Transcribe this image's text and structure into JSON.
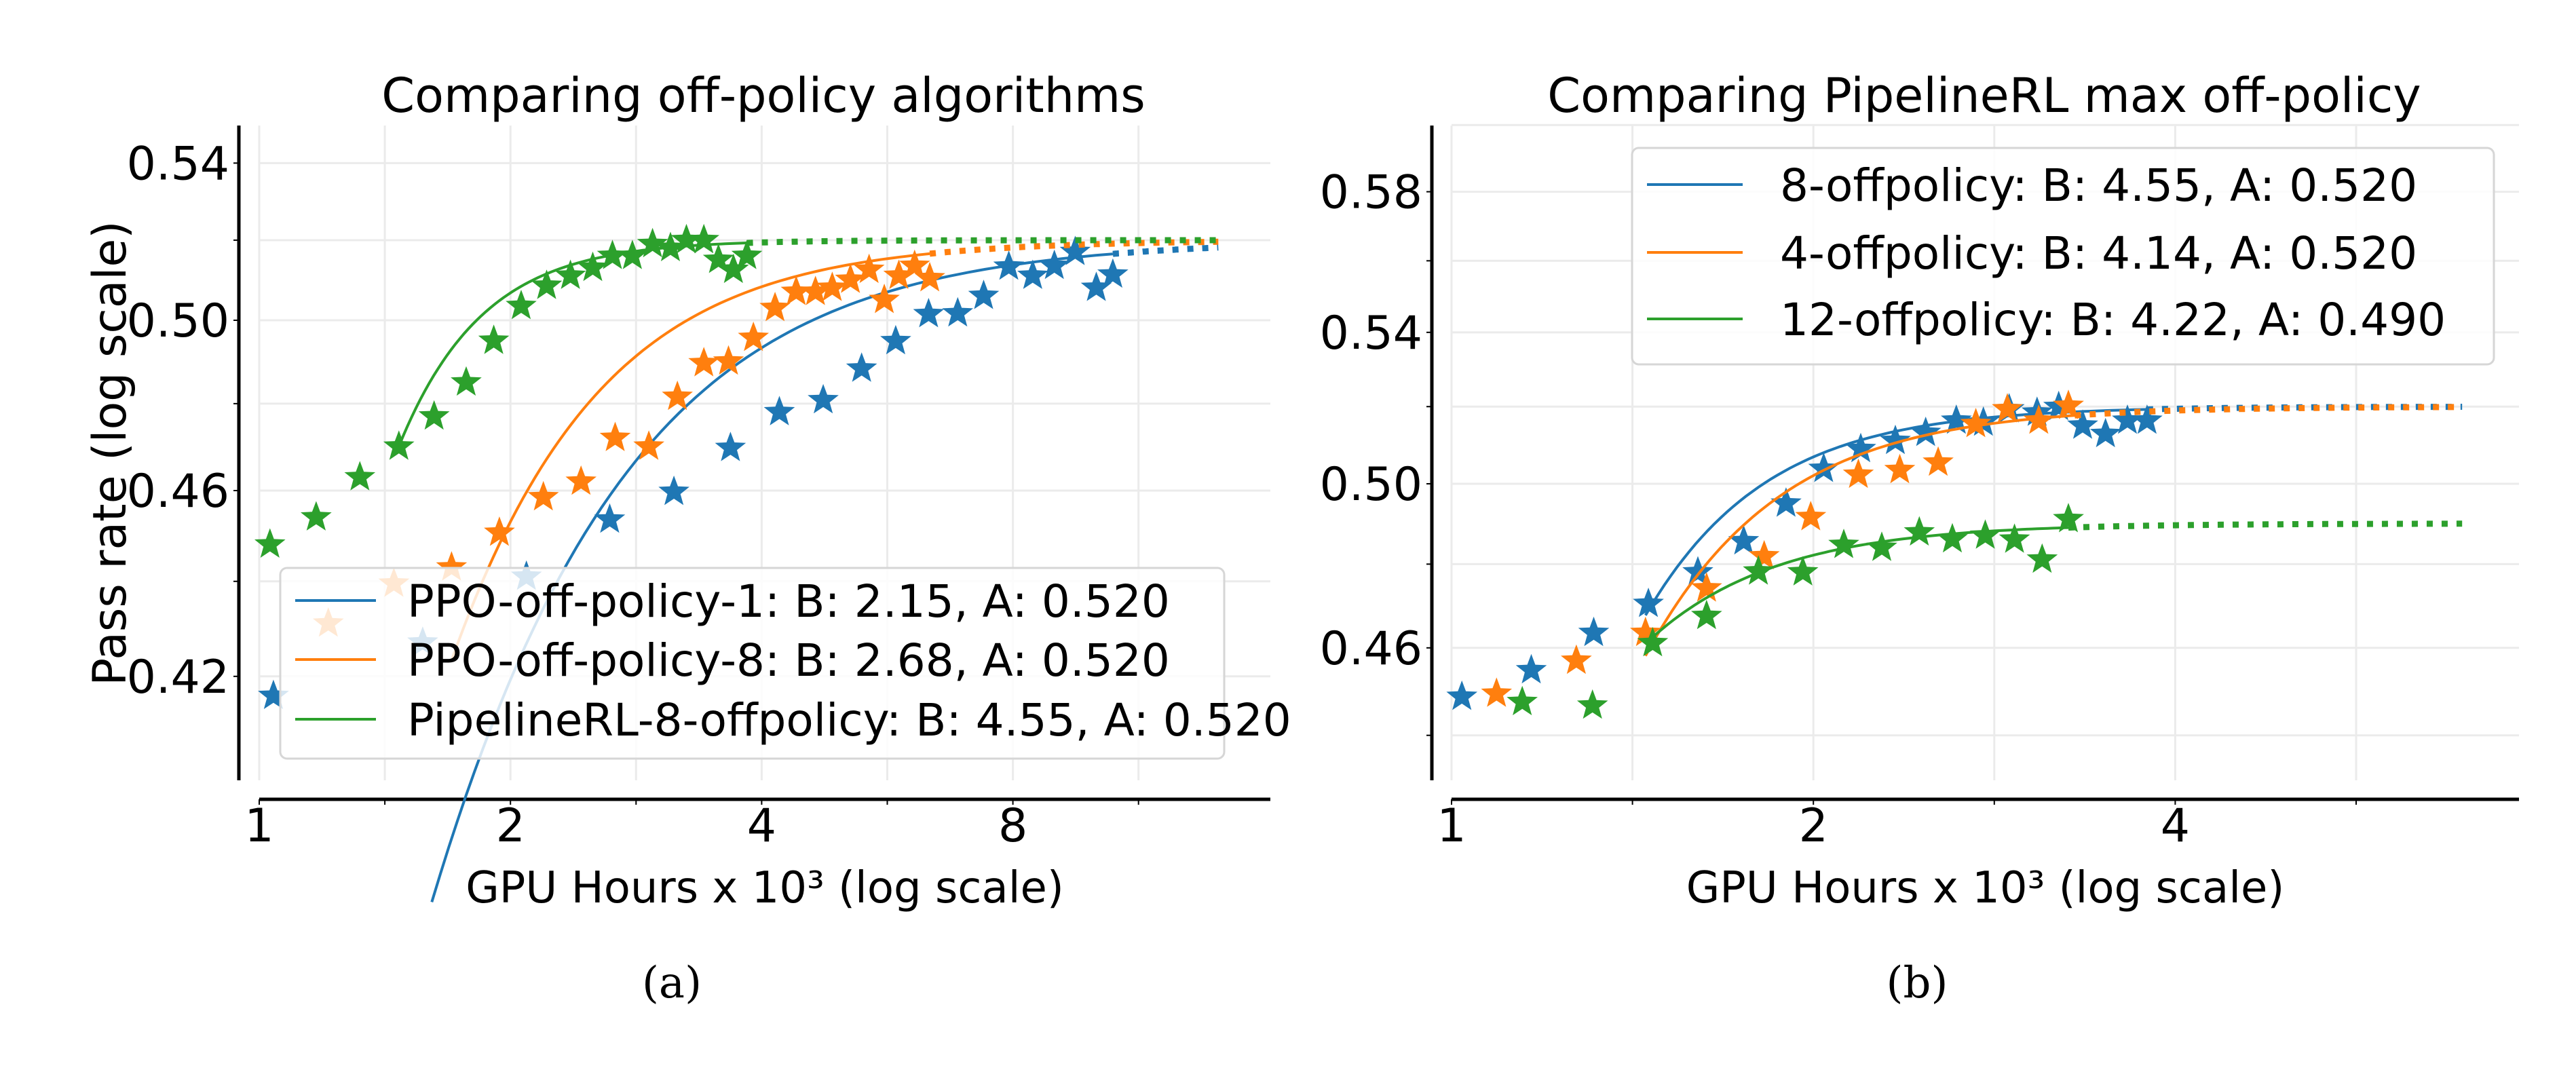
{
  "colors": {
    "blue": "#1f77b4",
    "orange": "#ff7f0e",
    "green": "#2ca02c"
  },
  "chart_data": [
    {
      "type": "scatter",
      "caption": "(a)",
      "title": "Comparing off-policy algorithms",
      "xlabel": "GPU Hours x 10³ (log scale)",
      "ylabel": "Pass rate (log scale)",
      "xscale": "log2",
      "yscale": "log",
      "xlim": [
        1,
        16
      ],
      "ylim": [
        0.4,
        0.55
      ],
      "xticks": [
        1,
        2,
        4,
        8
      ],
      "xtick_labels": [
        "1",
        "2",
        "4",
        "8"
      ],
      "yticks": [
        0.42,
        0.46,
        0.5,
        0.54
      ],
      "ytick_labels": [
        "0.42",
        "0.46",
        "0.50",
        "0.54"
      ],
      "grid": true,
      "legend_position": "lower-right",
      "marker": "star",
      "series": [
        {
          "name": "PPO-off-policy-1: B: 2.15, A: 0.520",
          "color": "#1f77b4",
          "B": 2.15,
          "A": 0.52,
          "fit_range": [
            1.61,
            10.54
          ],
          "extrapolate_to": 14.1,
          "x": [
            1.04,
            1.57,
            2.09,
            2.63,
            3.14,
            3.67,
            4.2,
            4.74,
            5.27,
            5.79,
            6.34,
            6.87,
            7.38,
            7.91,
            8.45,
            8.97,
            9.5,
            10.07,
            10.54
          ],
          "y": [
            0.416,
            0.427,
            0.441,
            0.4535,
            0.4597,
            0.4697,
            0.478,
            0.4808,
            0.4883,
            0.4949,
            0.5015,
            0.5017,
            0.506,
            0.5133,
            0.511,
            0.5135,
            0.517,
            0.508,
            0.5113
          ]
        },
        {
          "name": "PPO-off-policy-8: B: 2.68, A: 0.520",
          "color": "#ff7f0e",
          "B": 2.68,
          "A": 0.52,
          "fit_range": [
            1.7,
            6.36
          ],
          "extrapolate_to": 14.1,
          "x": [
            1.21,
            1.45,
            1.7,
            1.94,
            2.19,
            2.43,
            2.67,
            2.93,
            3.17,
            3.41,
            3.65,
            3.91,
            4.15,
            4.4,
            4.64,
            4.86,
            5.11,
            5.38,
            5.61,
            5.84,
            6.1,
            6.36
          ],
          "y": [
            0.431,
            0.4395,
            0.443,
            0.4506,
            0.4585,
            0.462,
            0.472,
            0.47,
            0.4816,
            0.4896,
            0.49,
            0.4957,
            0.503,
            0.507,
            0.507,
            0.508,
            0.51,
            0.5125,
            0.505,
            0.511,
            0.5135,
            0.5104
          ]
        },
        {
          "name": "PipelineRL-8-offpolicy: B: 4.55, A: 0.520",
          "color": "#2ca02c",
          "B": 4.55,
          "A": 0.52,
          "fit_range": [
            1.47,
            3.84
          ],
          "extrapolate_to": 14.1,
          "x": [
            1.03,
            1.17,
            1.32,
            1.47,
            1.62,
            1.77,
            1.91,
            2.06,
            2.21,
            2.36,
            2.51,
            2.65,
            2.8,
            2.96,
            3.11,
            3.25,
            3.41,
            3.55,
            3.7,
            3.84
          ],
          "y": [
            0.448,
            0.454,
            0.463,
            0.47,
            0.477,
            0.485,
            0.495,
            0.5035,
            0.5085,
            0.511,
            0.513,
            0.516,
            0.516,
            0.519,
            0.518,
            0.52,
            0.52,
            0.515,
            0.5125,
            0.516
          ]
        }
      ]
    },
    {
      "type": "scatter",
      "caption": "(b)",
      "title": "Comparing PipelineRL max off-policy",
      "xlabel": "GPU Hours x 10³ (log scale)",
      "ylabel": "",
      "xscale": "log2",
      "yscale": "log",
      "xlim": [
        1,
        7.7
      ],
      "ylim": [
        0.43,
        0.6
      ],
      "xticks": [
        1,
        2,
        4
      ],
      "xtick_labels": [
        "1",
        "2",
        "4"
      ],
      "yticks": [
        0.46,
        0.5,
        0.54,
        0.58
      ],
      "ytick_labels": [
        "0.46",
        "0.50",
        "0.54",
        "0.58"
      ],
      "grid": true,
      "legend_position": "upper-right",
      "marker": "star",
      "series": [
        {
          "name": "8-offpolicy: B: 4.55, A: 0.520",
          "color": "#1f77b4",
          "B": 4.55,
          "A": 0.52,
          "fit_range": [
            1.45,
            3.79
          ],
          "extrapolate_to": 6.93,
          "x": [
            1.02,
            1.165,
            1.313,
            1.458,
            1.603,
            1.75,
            1.898,
            2.04,
            2.19,
            2.34,
            2.48,
            2.63,
            2.77,
            2.91,
            3.07,
            3.2,
            3.35,
            3.5,
            3.65,
            3.79
          ],
          "y": [
            0.4487,
            0.4548,
            0.4635,
            0.4704,
            0.478,
            0.4856,
            0.495,
            0.5038,
            0.5089,
            0.511,
            0.5131,
            0.5163,
            0.5158,
            0.5193,
            0.5184,
            0.5199,
            0.515,
            0.5128,
            0.5163,
            0.5163
          ]
        },
        {
          "name": "4-offpolicy: B: 4.14, A: 0.520",
          "color": "#ff7f0e",
          "B": 4.14,
          "A": 0.52,
          "fit_range": [
            1.45,
            3.3
          ],
          "extrapolate_to": 6.93,
          "x": [
            1.09,
            1.27,
            1.45,
            1.63,
            1.82,
            1.99,
            2.18,
            2.36,
            2.54,
            2.73,
            2.9,
            3.08,
            3.26
          ],
          "y": [
            0.4494,
            0.457,
            0.4635,
            0.4741,
            0.4819,
            0.4916,
            0.5023,
            0.5035,
            0.5054,
            0.5154,
            0.5193,
            0.5163,
            0.5202
          ]
        },
        {
          "name": "12-offpolicy: B: 4.22, A: 0.490",
          "color": "#2ca02c",
          "B": 4.22,
          "A": 0.49,
          "fit_range": [
            1.47,
            3.26
          ],
          "extrapolate_to": 6.93,
          "x": [
            1.145,
            1.31,
            1.47,
            1.63,
            1.8,
            1.96,
            2.12,
            2.28,
            2.45,
            2.61,
            2.78,
            2.94,
            3.1,
            3.26
          ],
          "y": [
            0.4475,
            0.4467,
            0.4611,
            0.4675,
            0.4782,
            0.478,
            0.4847,
            0.484,
            0.4878,
            0.4861,
            0.487,
            0.486,
            0.4811,
            0.4911
          ]
        }
      ]
    }
  ]
}
